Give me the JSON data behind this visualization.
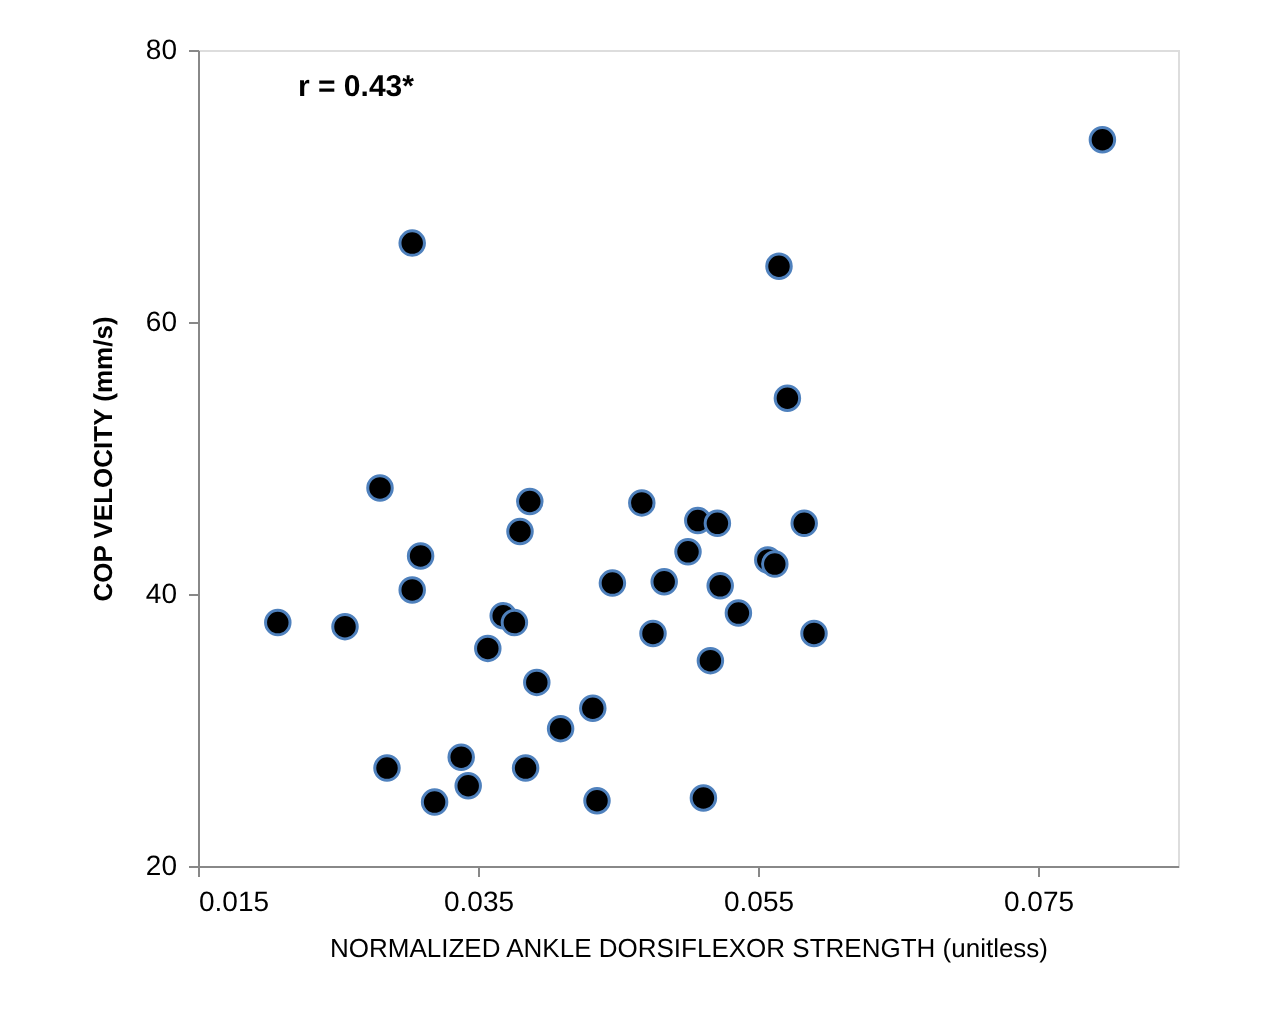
{
  "chart_data": {
    "type": "scatter",
    "xlabel": "NORMALIZED ANKLE DORSIFLEXOR STRENGTH (unitless)",
    "ylabel": "COP VELOCITY (mm/s)",
    "annotations": [
      "r = 0.43*"
    ],
    "x": [
      0.028,
      0.0387,
      0.0467,
      0.0507,
      0.038,
      0.0309,
      0.05,
      0.0303,
      0.0446,
      0.0483,
      0.0207,
      0.0255,
      0.0368,
      0.0376,
      0.0357,
      0.0475,
      0.0392,
      0.0432,
      0.0409,
      0.0285,
      0.0338,
      0.0384,
      0.0319,
      0.0343,
      0.0435,
      0.0571,
      0.0521,
      0.0583,
      0.0557,
      0.0562,
      0.0523,
      0.0536,
      0.059,
      0.0516,
      0.0511,
      0.0303,
      0.0565,
      0.0796
    ],
    "series": [
      {
        "color": "#000000",
        "values": [
          47.8,
          46.8,
          46.7,
          45.4,
          44.6,
          42.8,
          43.1,
          40.3,
          40.8,
          40.9,
          37.9,
          37.6,
          38.4,
          37.9,
          36.0,
          37.1,
          33.5,
          31.6,
          30.1,
          27.2,
          28.0,
          27.2,
          24.7,
          25.9,
          24.8,
          54.4,
          45.2,
          45.2,
          42.5,
          42.2,
          40.6,
          38.6,
          37.1,
          35.1,
          25.0,
          65.8,
          64.1,
          73.4
        ]
      }
    ],
    "xlim": [
      0.015,
      0.085
    ],
    "xticks": [
      0.015,
      0.035,
      0.055,
      0.075
    ],
    "ylim": [
      20,
      80
    ],
    "yticks": [
      20,
      40,
      60,
      80
    ],
    "marker": "circle",
    "grid": false
  }
}
